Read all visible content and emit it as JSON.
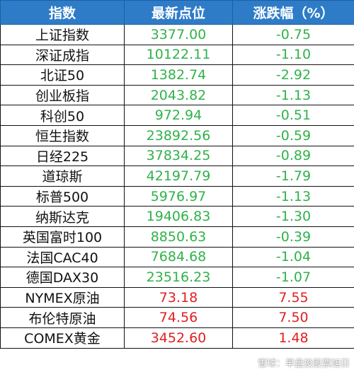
{
  "colors": {
    "header_bg": "#2e7cc8",
    "green": "#2fb24a",
    "red": "#e02020"
  },
  "headers": [
    "指数",
    "最新点位",
    "涨跌幅（%）"
  ],
  "rows": [
    {
      "name": "上证指数",
      "value": "3377.00",
      "change": "-0.75",
      "trend": "up"
    },
    {
      "name": "深证成指",
      "value": "10122.11",
      "change": "-1.10",
      "trend": "up"
    },
    {
      "name": "北证50",
      "value": "1382.74",
      "change": "-2.92",
      "trend": "up"
    },
    {
      "name": "创业板指",
      "value": "2043.82",
      "change": "-1.13",
      "trend": "up"
    },
    {
      "name": "科创50",
      "value": "972.94",
      "change": "-0.51",
      "trend": "up"
    },
    {
      "name": "恒生指数",
      "value": "23892.56",
      "change": "-0.59",
      "trend": "up"
    },
    {
      "name": "日经225",
      "value": "37834.25",
      "change": "-0.89",
      "trend": "up"
    },
    {
      "name": "道琼斯",
      "value": "42197.79",
      "change": "-1.79",
      "trend": "up"
    },
    {
      "name": "标普500",
      "value": "5976.97",
      "change": "-1.13",
      "trend": "up"
    },
    {
      "name": "纳斯达克",
      "value": "19406.83",
      "change": "-1.30",
      "trend": "up"
    },
    {
      "name": "英国富时100",
      "value": "8850.63",
      "change": "-0.39",
      "trend": "up"
    },
    {
      "name": "法国CAC40",
      "value": "7684.68",
      "change": "-1.04",
      "trend": "up"
    },
    {
      "name": "德国DAX30",
      "value": "23516.23",
      "change": "-1.07",
      "trend": "up"
    },
    {
      "name": "NYMEX原油",
      "value": "73.18",
      "change": "7.55",
      "trend": "down"
    },
    {
      "name": "布伦特原油",
      "value": "74.56",
      "change": "7.50",
      "trend": "down"
    },
    {
      "name": "COMEX黄金",
      "value": "3452.60",
      "change": "1.48",
      "trend": "down"
    }
  ],
  "watermark": "雪球：早盘投股票旭日"
}
